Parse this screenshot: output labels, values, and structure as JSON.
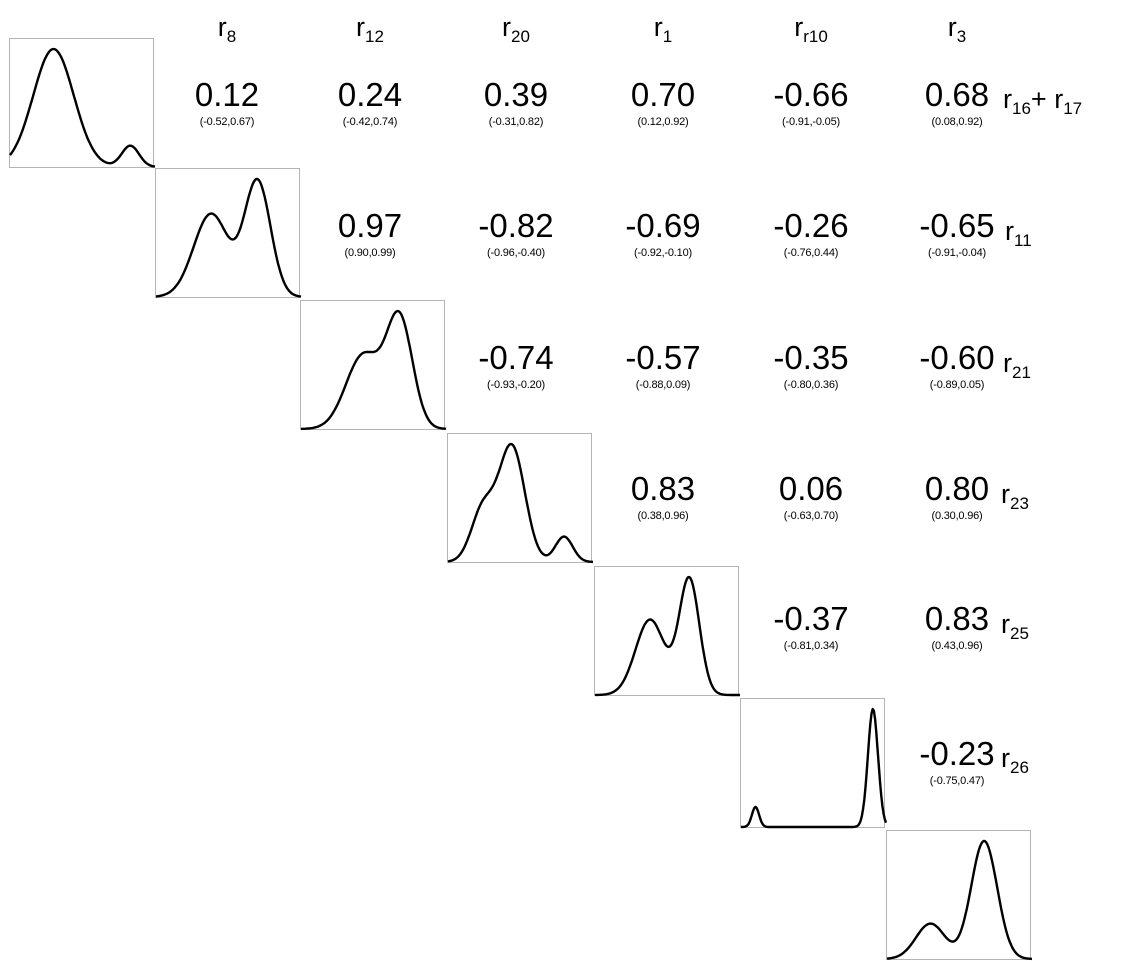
{
  "columns": [
    {
      "base": "r",
      "sub": "8"
    },
    {
      "base": "r",
      "sub": "12"
    },
    {
      "base": "r",
      "sub": "20"
    },
    {
      "base": "r",
      "sub": "1"
    },
    {
      "base": "r",
      "sub": "r10"
    },
    {
      "base": "r",
      "sub": "3"
    }
  ],
  "rows": [
    {
      "label": [
        {
          "base": "r",
          "sub": "16"
        },
        {
          "base": "+ r",
          "sub": "17"
        }
      ],
      "cells": [
        {
          "col": 0,
          "value": "0.12",
          "ci": "(-0.52,0.67)"
        },
        {
          "col": 1,
          "value": "0.24",
          "ci": "(-0.42,0.74)"
        },
        {
          "col": 2,
          "value": "0.39",
          "ci": "(-0.31,0.82)"
        },
        {
          "col": 3,
          "value": "0.70",
          "ci": "(0.12,0.92)"
        },
        {
          "col": 4,
          "value": "-0.66",
          "ci": "(-0.91,-0.05)"
        },
        {
          "col": 5,
          "value": "0.68",
          "ci": "(0.08,0.92)"
        }
      ]
    },
    {
      "label": [
        {
          "base": "r",
          "sub": "11"
        }
      ],
      "cells": [
        {
          "col": 1,
          "value": "0.97",
          "ci": "(0.90,0.99)"
        },
        {
          "col": 2,
          "value": "-0.82",
          "ci": "(-0.96,-0.40)"
        },
        {
          "col": 3,
          "value": "-0.69",
          "ci": "(-0.92,-0.10)"
        },
        {
          "col": 4,
          "value": "-0.26",
          "ci": "(-0.76,0.44)"
        },
        {
          "col": 5,
          "value": "-0.65",
          "ci": "(-0.91,-0.04)"
        }
      ]
    },
    {
      "label": [
        {
          "base": "r",
          "sub": "21"
        }
      ],
      "cells": [
        {
          "col": 2,
          "value": "-0.74",
          "ci": "(-0.93,-0.20)"
        },
        {
          "col": 3,
          "value": "-0.57",
          "ci": "(-0.88,0.09)"
        },
        {
          "col": 4,
          "value": "-0.35",
          "ci": "(-0.80,0.36)"
        },
        {
          "col": 5,
          "value": "-0.60",
          "ci": "(-0.89,0.05)"
        }
      ]
    },
    {
      "label": [
        {
          "base": "r",
          "sub": "23"
        }
      ],
      "cells": [
        {
          "col": 3,
          "value": "0.83",
          "ci": "(0.38,0.96)"
        },
        {
          "col": 4,
          "value": "0.06",
          "ci": "(-0.63,0.70)"
        },
        {
          "col": 5,
          "value": "0.80",
          "ci": "(0.30,0.96)"
        }
      ]
    },
    {
      "label": [
        {
          "base": "r",
          "sub": "25"
        }
      ],
      "cells": [
        {
          "col": 4,
          "value": "-0.37",
          "ci": "(-0.81,0.34)"
        },
        {
          "col": 5,
          "value": "0.83",
          "ci": "(0.43,0.96)"
        }
      ]
    },
    {
      "label": [
        {
          "base": "r",
          "sub": "26"
        }
      ],
      "cells": [
        {
          "col": 5,
          "value": "-0.23",
          "ci": "(-0.75,0.47)"
        }
      ]
    }
  ],
  "chart_data": {
    "type": "table",
    "columns": [
      "r8",
      "r12",
      "r20",
      "r1",
      "rr10",
      "r3"
    ],
    "row_labels": [
      "r16+ r17",
      "r11",
      "r21",
      "r23",
      "r25",
      "r26"
    ],
    "correlations": [
      [
        "0.12",
        "0.24",
        "0.39",
        "0.70",
        "-0.66",
        "0.68"
      ],
      [
        "",
        "0.97",
        "-0.82",
        "-0.69",
        "-0.26",
        "-0.65"
      ],
      [
        "",
        "",
        "-0.74",
        "-0.57",
        "-0.35",
        "-0.60"
      ],
      [
        "",
        "",
        "",
        "0.83",
        "0.06",
        "0.80"
      ],
      [
        "",
        "",
        "",
        "",
        "-0.37",
        "0.83"
      ],
      [
        "",
        "",
        "",
        "",
        "",
        "-0.23"
      ]
    ],
    "confidence_intervals": [
      [
        "(-0.52,0.67)",
        "(-0.42,0.74)",
        "(-0.31,0.82)",
        "(0.12,0.92)",
        "(-0.91,-0.05)",
        "(0.08,0.92)"
      ],
      [
        "",
        "(0.90,0.99)",
        "(-0.96,-0.40)",
        "(-0.92,-0.10)",
        "(-0.76,0.44)",
        "(-0.91,-0.04)"
      ],
      [
        "",
        "",
        "(-0.93,-0.20)",
        "(-0.88,0.09)",
        "(-0.80,0.36)",
        "(-0.89,0.05)"
      ],
      [
        "",
        "",
        "",
        "(0.38,0.96)",
        "(-0.63,0.70)",
        "(0.30,0.96)"
      ],
      [
        "",
        "",
        "",
        "",
        "(-0.81,0.34)",
        "(0.43,0.96)"
      ],
      [
        "",
        "",
        "",
        "",
        "",
        "(-0.75,0.47)"
      ]
    ],
    "diagonal_densities": [
      {
        "peaks": [
          {
            "center": 0.3,
            "height": 1.0,
            "width": 0.14
          },
          {
            "center": 0.83,
            "height": 0.18,
            "width": 0.06
          }
        ]
      },
      {
        "peaks": [
          {
            "center": 0.38,
            "height": 0.72,
            "width": 0.12
          },
          {
            "center": 0.7,
            "height": 1.0,
            "width": 0.09
          }
        ]
      },
      {
        "peaks": [
          {
            "center": 0.43,
            "height": 0.68,
            "width": 0.12
          },
          {
            "center": 0.68,
            "height": 1.0,
            "width": 0.09
          }
        ]
      },
      {
        "peaks": [
          {
            "center": 0.24,
            "height": 0.45,
            "width": 0.08
          },
          {
            "center": 0.44,
            "height": 1.0,
            "width": 0.09
          },
          {
            "center": 0.8,
            "height": 0.22,
            "width": 0.06
          }
        ]
      },
      {
        "peaks": [
          {
            "center": 0.38,
            "height": 0.65,
            "width": 0.1
          },
          {
            "center": 0.65,
            "height": 1.0,
            "width": 0.07
          }
        ]
      },
      {
        "peaks": [
          {
            "center": 0.1,
            "height": 0.17,
            "width": 0.025
          },
          {
            "center": 0.91,
            "height": 1.0,
            "width": 0.035
          }
        ]
      },
      {
        "peaks": [
          {
            "center": 0.3,
            "height": 0.3,
            "width": 0.1
          },
          {
            "center": 0.67,
            "height": 1.0,
            "width": 0.09
          }
        ]
      }
    ]
  }
}
